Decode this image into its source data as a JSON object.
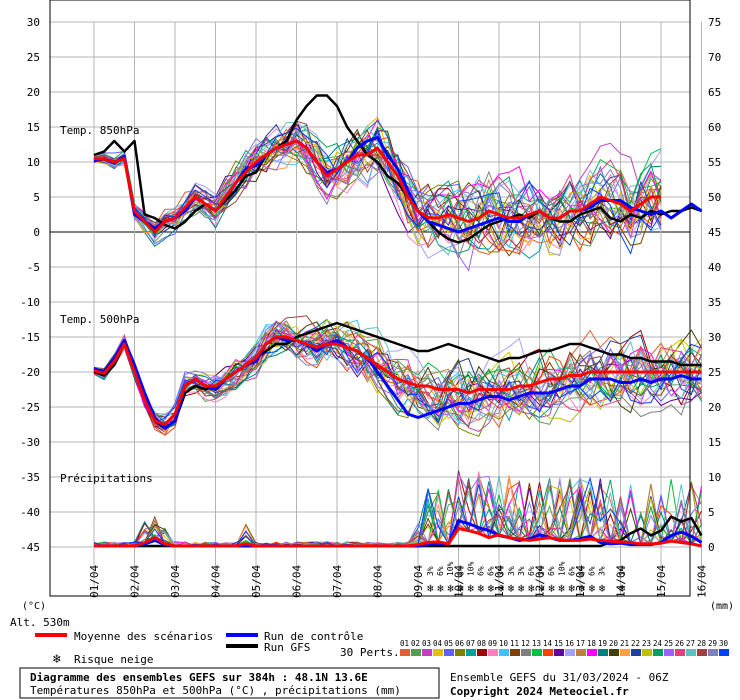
{
  "colors": {
    "grid": "#b4b4b4",
    "zero_line": "#000000",
    "mean": "#ff0000",
    "control": "#0000ff",
    "gfs": "#000000",
    "snow": "#4aa3df"
  },
  "chart_data": {
    "type": "line",
    "title": "Diagramme des ensembles GEFS sur 384h : 48.1N 13.6E",
    "subtitle": "Températures 850hPa et 500hPa (°C) , précipitations (mm)",
    "run_info": "Ensemble GEFS du 31/03/2024 - 06Z",
    "copyright": "Copyright 2024 Meteociel.fr",
    "altitude": "Alt. 530m",
    "left_axis_unit": "(°C)",
    "right_axis_unit": "(mm)",
    "left_ticks": [
      "30",
      "25",
      "20",
      "15",
      "10",
      "5",
      "0",
      "-5",
      "-10",
      "-15",
      "-20",
      "-25",
      "-30",
      "-35",
      "-40",
      "-45"
    ],
    "right_ticks": [
      "75",
      "70",
      "65",
      "60",
      "55",
      "50",
      "45",
      "40",
      "35",
      "30",
      "25",
      "20",
      "15",
      "10",
      "5",
      "0"
    ],
    "x_ticks": [
      "01/04",
      "02/04",
      "03/04",
      "04/04",
      "05/04",
      "06/04",
      "07/04",
      "08/04",
      "09/04",
      "10/04",
      "11/04",
      "12/04",
      "13/04",
      "14/04",
      "15/04",
      "16/04"
    ],
    "panels": {
      "t850": "Temp. 850hPa",
      "t500": "Temp. 500hPa",
      "precip": "Précipitations"
    },
    "legend": {
      "mean": "Moyenne des scénarios",
      "control": "Run de contrôle",
      "gfs": "Run GFS",
      "snow": "Risque neige",
      "perts": "30 Perts."
    },
    "member_numbers": [
      "01",
      "02",
      "03",
      "04",
      "05",
      "06",
      "07",
      "08",
      "09",
      "10",
      "11",
      "12",
      "13",
      "14",
      "15",
      "16",
      "17",
      "18",
      "19",
      "20",
      "21",
      "22",
      "23",
      "24",
      "25",
      "26",
      "27",
      "28",
      "29",
      "30"
    ],
    "member_colors": [
      "#e06030",
      "#50a050",
      "#c040c0",
      "#e0c000",
      "#6060ff",
      "#808000",
      "#00a0a0",
      "#a00000",
      "#ff80c0",
      "#40c0ff",
      "#804000",
      "#808080",
      "#00c040",
      "#ff4000",
      "#6000a0",
      "#a0a0ff",
      "#c08040",
      "#ff00ff",
      "#008080",
      "#404000",
      "#ffa040",
      "#2040a0",
      "#c0c000",
      "#00a060",
      "#a060ff",
      "#e04080",
      "#60c0c0",
      "#a04040",
      "#8080c0",
      "#0040ff"
    ],
    "snow_risk_labels": [
      "3%",
      "6%",
      "10%",
      "6%",
      "10%",
      "6%",
      "6%",
      "3%",
      "3%",
      "3%",
      "6%",
      "3%",
      "6%",
      "10%",
      "6%",
      "6%",
      "6%",
      "3%",
      "",
      "3%"
    ],
    "days": [
      0,
      1,
      2,
      3,
      4,
      5,
      6,
      7,
      8,
      9,
      10,
      11,
      12,
      13,
      14,
      15
    ],
    "series": [
      {
        "name": "Moyenne des scénarios",
        "t850_x": [
          0,
          0.25,
          0.5,
          0.75,
          1,
          1.25,
          1.5,
          1.75,
          2,
          2.25,
          2.5,
          2.75,
          3,
          3.25,
          3.5,
          3.75,
          4,
          4.25,
          4.5,
          4.75,
          5,
          5.25,
          5.5,
          5.75,
          6,
          6.25,
          6.5,
          6.75,
          7,
          7.25,
          7.5,
          7.75,
          8,
          8.25,
          8.5,
          8.75,
          9,
          9.25,
          9.5,
          9.75,
          10,
          10.25,
          10.5,
          10.75,
          11,
          11.25,
          11.5,
          11.75,
          12,
          12.25,
          12.5,
          12.75,
          13,
          13.25,
          13.5,
          13.75,
          14,
          14.25,
          14.5,
          14.75,
          15
        ],
        "t850": [
          10.5,
          10.4,
          10,
          10.5,
          3,
          1.5,
          0,
          1.5,
          2,
          3.5,
          5,
          4,
          3,
          5,
          7,
          8.5,
          10,
          11,
          12,
          12.5,
          13,
          12,
          10,
          8,
          9,
          10,
          11,
          11,
          12,
          10,
          8,
          5,
          3,
          2,
          2,
          2.5,
          2,
          1.5,
          2,
          3,
          2.5,
          2,
          2,
          2.5,
          3,
          2,
          2,
          3,
          3,
          4,
          5,
          4.5,
          4,
          3,
          4,
          5,
          5
        ],
        "t500": [
          -19.8,
          -20.2,
          -18.5,
          -16,
          -20,
          -24,
          -27,
          -27.5,
          -26,
          -22,
          -21,
          -22,
          -22,
          -21,
          -20,
          -19,
          -18,
          -16,
          -15,
          -15,
          -15.5,
          -16,
          -16.5,
          -16,
          -16,
          -16.5,
          -17,
          -18,
          -19,
          -20,
          -21,
          -21.5,
          -22,
          -22,
          -22.5,
          -22.5,
          -22.5,
          -23,
          -22.5,
          -22.5,
          -22.5,
          -22.5,
          -22,
          -22,
          -21.5,
          -21,
          -21,
          -20.5,
          -20.5,
          -20,
          -20,
          -20,
          -20,
          -20,
          -20,
          -20,
          -20,
          -20,
          -20,
          -20,
          -20
        ],
        "precip": [
          0,
          0,
          0,
          0,
          0,
          0.5,
          1.2,
          0.3,
          0,
          0,
          0,
          0,
          0,
          0,
          0,
          0.3,
          0,
          0,
          0,
          0,
          0,
          0,
          0,
          0,
          0,
          0,
          0,
          0,
          0,
          0,
          0,
          0,
          0.2,
          0.5,
          0.6,
          0.3,
          2.5,
          2.2,
          1.8,
          1.2,
          1.6,
          1.2,
          1.0,
          0.8,
          1.0,
          1.2,
          0.9,
          0.8,
          0.8,
          1.0,
          0.8,
          0.7,
          0.6,
          0.5,
          0.3,
          0.3,
          0.4,
          0.7,
          0.5,
          0.3,
          0
        ]
      },
      {
        "name": "Run de contrôle",
        "t850_x": [
          0,
          0.25,
          0.5,
          0.75,
          1,
          1.25,
          1.5,
          1.75,
          2,
          2.25,
          2.5,
          2.75,
          3,
          3.25,
          3.5,
          3.75,
          4,
          4.25,
          4.5,
          4.75,
          5,
          5.25,
          5.5,
          5.75,
          6,
          6.25,
          6.5,
          6.75,
          7,
          7.25,
          7.5,
          7.75,
          8,
          8.25,
          8.5,
          8.75,
          9,
          9.25,
          9.5,
          9.75,
          10,
          10.25,
          10.5,
          10.75,
          11,
          11.25,
          11.5,
          11.75,
          12,
          12.25,
          12.5,
          12.75,
          13,
          13.25,
          13.5,
          13.75,
          14,
          14.25,
          14.5,
          14.75,
          15
        ],
        "t850": [
          10.2,
          10.4,
          9.8,
          10.8,
          2.5,
          1.5,
          0.5,
          1.5,
          2,
          3,
          5,
          4,
          3,
          5,
          7,
          9,
          9.5,
          11,
          12,
          12.5,
          13,
          12,
          10,
          8.5,
          9,
          10,
          12,
          13,
          13.5,
          11,
          9,
          6,
          3,
          1.5,
          1,
          0.5,
          0,
          0.5,
          1,
          1.5,
          2,
          1.5,
          1.5,
          2.5,
          3,
          2,
          2,
          3,
          3,
          3.5,
          4.5,
          4.5,
          4.5,
          3.5,
          3,
          2.5,
          3,
          2,
          3,
          4,
          3
        ],
        "t500": [
          -19.5,
          -20,
          -18,
          -15.5,
          -19,
          -23,
          -26.5,
          -28,
          -27,
          -22,
          -21,
          -22,
          -22.5,
          -21,
          -20,
          -19,
          -18.5,
          -16,
          -15,
          -15.5,
          -15.5,
          -16,
          -17,
          -16,
          -15.5,
          -16.5,
          -17,
          -18,
          -20,
          -22,
          -24,
          -26,
          -26.5,
          -26,
          -25.5,
          -25,
          -24.5,
          -24.5,
          -24,
          -23.5,
          -23.5,
          -24,
          -23.5,
          -23,
          -23,
          -23,
          -22.5,
          -22,
          -22,
          -21,
          -21,
          -21,
          -21.5,
          -21.5,
          -21,
          -21.5,
          -21,
          -21,
          -20.5,
          -21,
          -21
        ],
        "precip": [
          0,
          0,
          0,
          0,
          0,
          0.3,
          0.8,
          0.2,
          0,
          0,
          0,
          0,
          0,
          0,
          0,
          0,
          0,
          0,
          0,
          0,
          0,
          0,
          0,
          0,
          0,
          0,
          0,
          0,
          0,
          0,
          0,
          0,
          0,
          0.2,
          0.4,
          0.2,
          3.6,
          3.2,
          2.6,
          2.2,
          1.5,
          1.2,
          0.8,
          1.0,
          1.6,
          1.2,
          0.8,
          0.8,
          1.0,
          1.4,
          0.5,
          0.3,
          0.4,
          0.2,
          0.2,
          0.2,
          0.5,
          1.5,
          2.0,
          1.4,
          0.5
        ]
      },
      {
        "name": "Run GFS",
        "t850_x": [
          0,
          0.25,
          0.5,
          0.75,
          1,
          1.25,
          1.5,
          1.75,
          2,
          2.25,
          2.5,
          2.75,
          3,
          3.25,
          3.5,
          3.75,
          4,
          4.25,
          4.5,
          4.75,
          5,
          5.25,
          5.5,
          5.75,
          6,
          6.25,
          6.5,
          6.75,
          7,
          7.25,
          7.5,
          7.75,
          8,
          8.25,
          8.5,
          8.75,
          9,
          9.25,
          9.5,
          9.75,
          10,
          10.25,
          10.5,
          10.75,
          11,
          11.25,
          11.5,
          11.75,
          12,
          12.25,
          12.5,
          12.75,
          13,
          13.25,
          13.5,
          13.75,
          14,
          14.25,
          14.5,
          14.75,
          15
        ],
        "t850": [
          11,
          11.5,
          13,
          11.5,
          13,
          2.5,
          2,
          1,
          0.5,
          1.5,
          3,
          4,
          3,
          4.5,
          6,
          8,
          8.5,
          11,
          12,
          13,
          16,
          18,
          19.5,
          19.5,
          18,
          15,
          13,
          11,
          10,
          8,
          7,
          5,
          3,
          1.5,
          0,
          -1,
          -1.5,
          -1,
          0,
          1,
          1.5,
          2,
          2.5,
          2,
          3,
          2,
          1.5,
          1.5,
          2.5,
          3,
          3.5,
          2,
          1.5,
          2.5,
          2,
          3,
          2.5,
          3,
          3,
          3.5,
          3
        ],
        "t500": [
          -20,
          -20.5,
          -19,
          -16,
          -20,
          -24,
          -27,
          -28,
          -27,
          -23,
          -22,
          -22.5,
          -22,
          -21,
          -20,
          -19,
          -18,
          -17,
          -16,
          -16,
          -15,
          -14.5,
          -14,
          -13.5,
          -13,
          -13.5,
          -14,
          -14.5,
          -15,
          -15.5,
          -16,
          -16.5,
          -17,
          -17,
          -16.5,
          -16,
          -16.5,
          -17,
          -17.5,
          -18,
          -18.5,
          -18,
          -18,
          -17.5,
          -17,
          -17,
          -16.5,
          -16,
          -16,
          -16.5,
          -17,
          -17.5,
          -17.5,
          -18,
          -18,
          -18.5,
          -18.5,
          -18.5,
          -19,
          -19,
          -19
        ],
        "precip": [
          0,
          0,
          0,
          0,
          0,
          0,
          0,
          0,
          0,
          0,
          0,
          0,
          0,
          0,
          0,
          0,
          0,
          0,
          0,
          0,
          0,
          0,
          0,
          0,
          0,
          0,
          0,
          0,
          0,
          0,
          0,
          0,
          0,
          0,
          0,
          0,
          0,
          0,
          0,
          0,
          0,
          0,
          0,
          0,
          0,
          0,
          0,
          0,
          0,
          0,
          0,
          0.5,
          0.8,
          1.8,
          2.5,
          1.5,
          2.2,
          4.2,
          3.5,
          4.0,
          1.5
        ]
      }
    ]
  }
}
